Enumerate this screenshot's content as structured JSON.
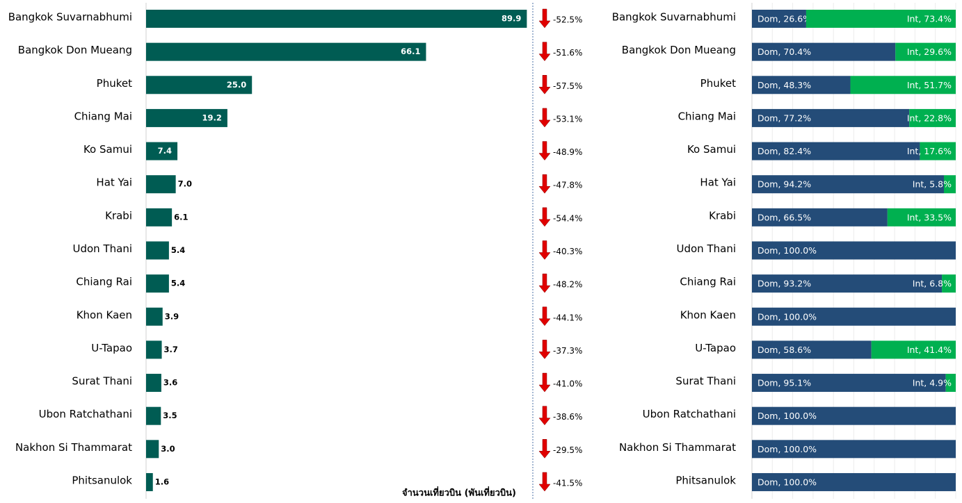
{
  "chart_data": [
    {
      "type": "bar",
      "orientation": "horizontal",
      "categories": [
        "Bangkok Suvarnabhumi",
        "Bangkok Don Mueang",
        "Phuket",
        "Chiang Mai",
        "Ko Samui",
        "Hat Yai",
        "Krabi",
        "Udon Thani",
        "Chiang Rai",
        "Khon Kaen",
        "U-Tapao",
        "Surat Thani",
        "Ubon Ratchathani",
        "Nakhon Si Thammarat",
        "Phitsanulok"
      ],
      "values": [
        89.9,
        66.1,
        25.0,
        19.2,
        7.4,
        7.0,
        6.1,
        5.4,
        5.4,
        3.9,
        3.7,
        3.6,
        3.5,
        3.0,
        1.6
      ],
      "value_labels": [
        "89.9",
        "66.1",
        "25.0",
        "19.2",
        "7.4",
        "7.0",
        "6.1",
        "5.4",
        "5.4",
        "3.9",
        "3.7",
        "3.6",
        "3.5",
        "3.0",
        "1.6"
      ],
      "color": "#005c53",
      "xlim": [
        0,
        90
      ],
      "xlabel": "จำนวนเที่ยวบิน (พันเที่ยวบิน)",
      "changes": [
        -52.5,
        -51.6,
        -57.5,
        -53.1,
        -48.9,
        -47.8,
        -54.4,
        -40.3,
        -48.2,
        -44.1,
        -37.3,
        -41.0,
        -38.6,
        -29.5,
        -41.5
      ],
      "change_labels": [
        "-52.5%",
        "-51.6%",
        "-57.5%",
        "-53.1%",
        "-48.9%",
        "-47.8%",
        "-54.4%",
        "-40.3%",
        "-48.2%",
        "-44.1%",
        "-37.3%",
        "-41.0%",
        "-38.6%",
        "-29.5%",
        "-41.5%"
      ],
      "change_color": "#e00000"
    },
    {
      "type": "stacked-bar",
      "orientation": "horizontal",
      "categories": [
        "Bangkok Suvarnabhumi",
        "Bangkok Don Mueang",
        "Phuket",
        "Chiang Mai",
        "Ko Samui",
        "Hat Yai",
        "Krabi",
        "Udon Thani",
        "Chiang Rai",
        "Khon Kaen",
        "U-Tapao",
        "Surat Thani",
        "Ubon Ratchathani",
        "Nakhon Si Thammarat",
        "Phitsanulok"
      ],
      "series": [
        {
          "name": "Dom",
          "color": "#244c78",
          "values": [
            26.6,
            70.4,
            48.3,
            77.2,
            82.4,
            94.2,
            66.5,
            100.0,
            93.2,
            100.0,
            58.6,
            95.1,
            100.0,
            100.0,
            100.0
          ],
          "value_labels": [
            "Dom, 26.6%",
            "Dom, 70.4%",
            "Dom, 48.3%",
            "Dom, 77.2%",
            "Dom, 82.4%",
            "Dom, 94.2%",
            "Dom, 66.5%",
            "Dom, 100.0%",
            "Dom, 93.2%",
            "Dom, 100.0%",
            "Dom, 58.6%",
            "Dom, 95.1%",
            "Dom, 100.0%",
            "Dom, 100.0%",
            "Dom, 100.0%"
          ]
        },
        {
          "name": "Int",
          "color": "#00b050",
          "values": [
            73.4,
            29.6,
            51.7,
            22.8,
            17.6,
            5.8,
            33.5,
            0,
            6.8,
            0,
            41.4,
            4.9,
            0,
            0,
            0
          ],
          "value_labels": [
            "Int, 73.4%",
            "Int, 29.6%",
            "Int, 51.7%",
            "Int, 22.8%",
            "Int, 17.6%",
            "Int, 5.8%",
            "Int, 33.5%",
            null,
            "Int, 6.8%",
            null,
            "Int, 41.4%",
            "Int, 4.9%",
            null,
            null,
            null
          ]
        }
      ],
      "xlim": [
        0,
        100
      ],
      "xticks": [
        0,
        10,
        20,
        30,
        40,
        50,
        60,
        70,
        80,
        90,
        100
      ],
      "grid": true
    }
  ]
}
